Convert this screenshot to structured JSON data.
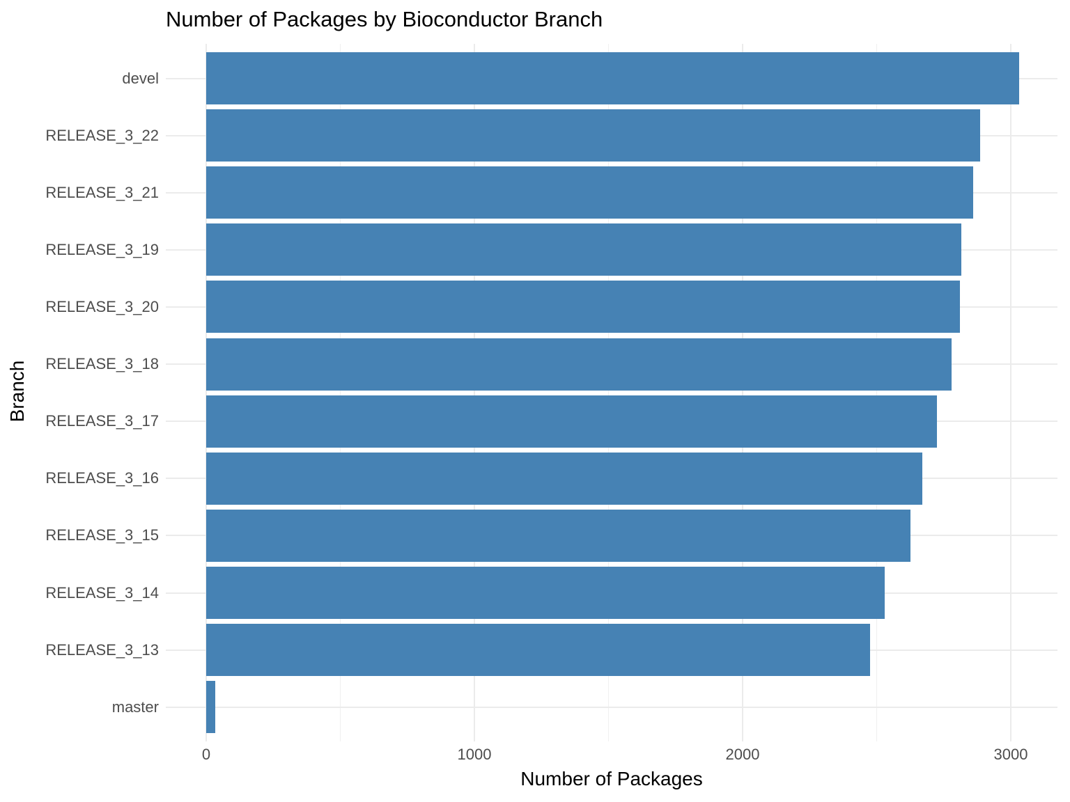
{
  "chart_data": {
    "type": "bar",
    "orientation": "horizontal",
    "title": "Number of Packages by Bioconductor Branch",
    "xlabel": "Number of Packages",
    "ylabel": "Branch",
    "categories": [
      "devel",
      "RELEASE_3_22",
      "RELEASE_3_21",
      "RELEASE_3_19",
      "RELEASE_3_20",
      "RELEASE_3_18",
      "RELEASE_3_17",
      "RELEASE_3_16",
      "RELEASE_3_15",
      "RELEASE_3_14",
      "RELEASE_3_13",
      "master"
    ],
    "values": [
      3030,
      2885,
      2860,
      2815,
      2810,
      2780,
      2725,
      2670,
      2625,
      2530,
      2475,
      33
    ],
    "xlim": [
      0,
      3000
    ],
    "x_major_ticks": [
      0,
      1000,
      2000,
      3000
    ],
    "x_tick_labels": [
      "0",
      "1000",
      "2000",
      "3000"
    ],
    "x_minor_ticks": [
      500,
      1500,
      2500
    ],
    "grid": "vertical major+minor, horizontal per category",
    "legend_position": "none",
    "bar_color": "#4682B4",
    "grid_major_color": "#EBEBEB",
    "grid_minor_color": "#F0F0F0",
    "tick_label_color": "#4D4D4D",
    "title_color": "#000000",
    "background_color": "#FFFFFF"
  }
}
